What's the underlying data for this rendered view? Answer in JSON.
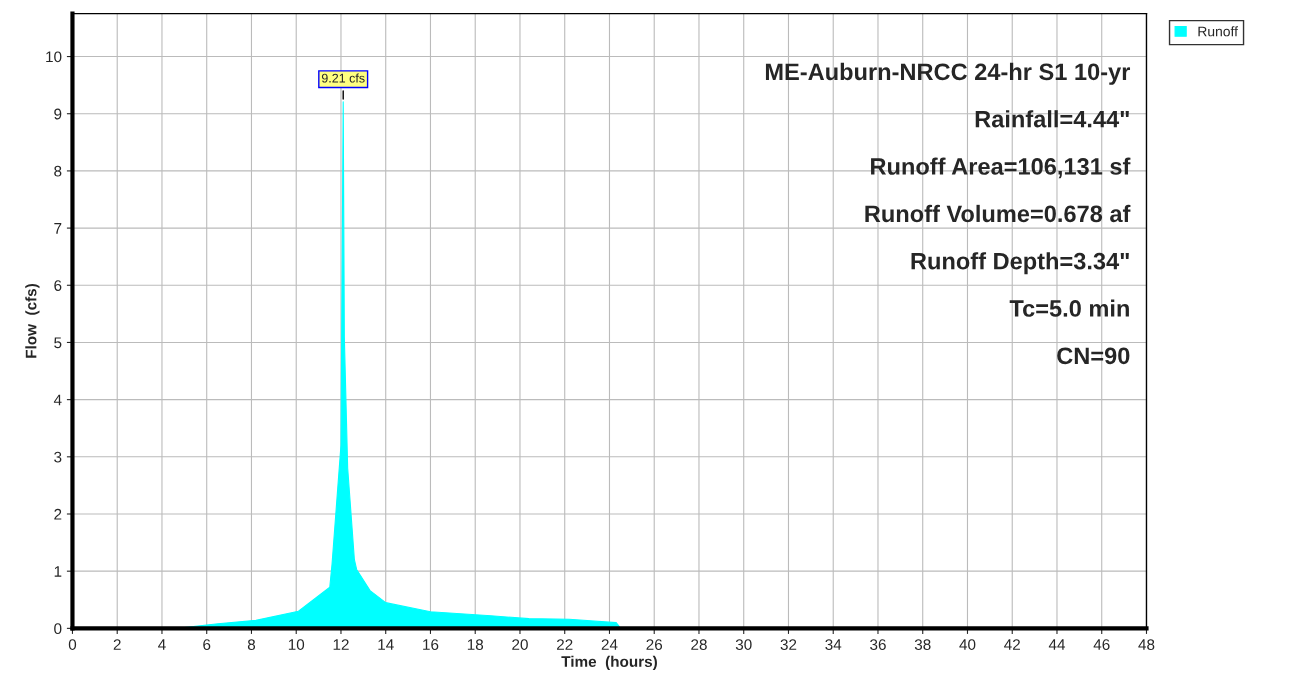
{
  "chart_data": {
    "type": "area",
    "xlabel": "Time  (hours)",
    "ylabel": "Flow  (cfs)",
    "series": [
      {
        "name": "Runoff",
        "color": "#00ffff",
        "x": [
          0,
          4.7,
          6.5,
          8.2,
          10.1,
          11.5,
          11.6,
          12.0,
          12.1,
          12.15,
          12.3,
          12.6,
          12.7,
          13.3,
          14.0,
          16.0,
          18.7,
          20.4,
          22.2,
          24.3,
          24.5,
          48
        ],
        "values": [
          0,
          0,
          0.08,
          0.14,
          0.3,
          0.72,
          1.12,
          3.2,
          9.21,
          5.1,
          2.8,
          1.2,
          1.03,
          0.66,
          0.45,
          0.29,
          0.22,
          0.17,
          0.16,
          0.1,
          0,
          0
        ]
      }
    ],
    "annotations": [
      {
        "text": "9.21 cfs",
        "x": 12.1,
        "y": 9.21
      },
      "ME-Auburn-NRCC 24-hr S1 10-yr",
      "Rainfall=4.44\"",
      "Runoff Area=106,131 sf",
      "Runoff Volume=0.678 af",
      "Runoff Depth=3.34\"",
      "Tc=5.0 min",
      "CN=90"
    ],
    "xlim": [
      0,
      48
    ],
    "ylim": [
      0,
      10.75
    ],
    "xticks": [
      0,
      2,
      4,
      6,
      8,
      10,
      12,
      14,
      16,
      18,
      20,
      22,
      24,
      26,
      28,
      30,
      32,
      34,
      36,
      38,
      40,
      42,
      44,
      46,
      48
    ],
    "yticks": [
      0,
      1,
      2,
      3,
      4,
      5,
      6,
      7,
      8,
      9,
      10
    ],
    "grid": true,
    "legend": "top right"
  }
}
